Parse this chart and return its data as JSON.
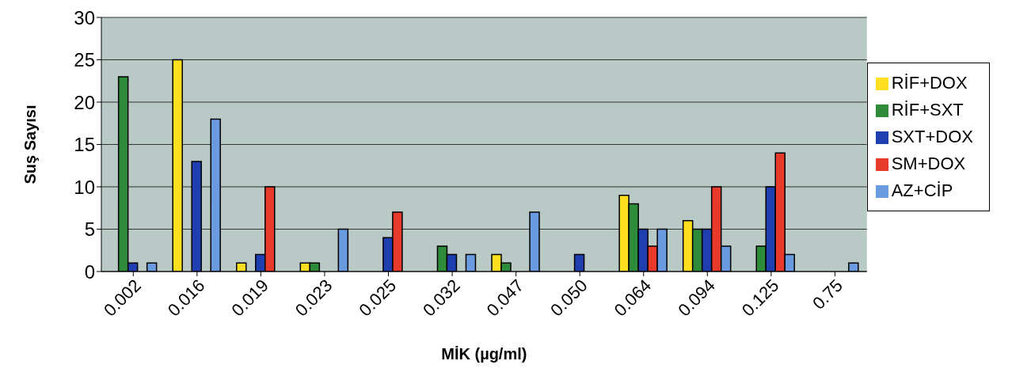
{
  "chart_data": {
    "type": "bar",
    "xlabel": "MİK (µg/ml)",
    "ylabel": "Suş Sayısı",
    "categories": [
      "0.002",
      "0.016",
      "0.019",
      "0.023",
      "0.025",
      "0.032",
      "0.047",
      "0.050",
      "0.064",
      "0.094",
      "0.125",
      "0.75"
    ],
    "series": [
      {
        "name": "RİF+DOX",
        "color": "#ffe020",
        "values": [
          0,
          25,
          1,
          1,
          0,
          0,
          2,
          0,
          9,
          6,
          0,
          0
        ]
      },
      {
        "name": "RİF+SXT",
        "color": "#2e8b3a",
        "values": [
          23,
          0,
          0,
          1,
          0,
          3,
          1,
          0,
          8,
          5,
          3,
          0
        ]
      },
      {
        "name": "SXT+DOX",
        "color": "#1f3fb0",
        "values": [
          1,
          13,
          2,
          0,
          4,
          2,
          0,
          2,
          5,
          5,
          10,
          0
        ]
      },
      {
        "name": "SM+DOX",
        "color": "#e83a2a",
        "values": [
          0,
          0,
          10,
          0,
          7,
          0,
          0,
          0,
          3,
          10,
          14,
          0
        ]
      },
      {
        "name": "AZ+CİP",
        "color": "#6a9be0",
        "values": [
          1,
          18,
          0,
          5,
          0,
          2,
          7,
          0,
          5,
          3,
          2,
          1
        ]
      }
    ],
    "ylim": [
      0,
      30
    ],
    "yticks": [
      0,
      5,
      10,
      15,
      20,
      25,
      30
    ],
    "grid": "y",
    "legend": "right"
  }
}
